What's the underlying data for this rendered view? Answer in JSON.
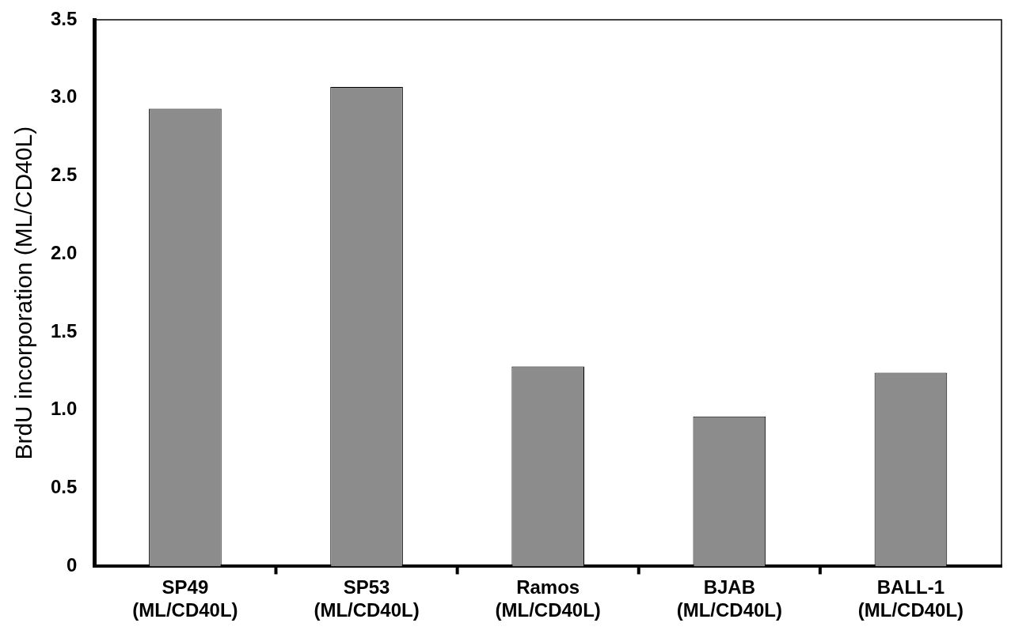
{
  "chart_data": {
    "type": "bar",
    "ylabel": "BrdU incorporation (ML/CD40L)",
    "categories": [
      "SP49\n(ML/CD40L)",
      "SP53\n(ML/CD40L)",
      "Ramos\n(ML/CD40L)",
      "BJAB\n(ML/CD40L)",
      "BALL-1\n(ML/CD40L)"
    ],
    "values": [
      2.93,
      3.07,
      1.28,
      0.96,
      1.24
    ],
    "color": "#8c8c8c",
    "ylim": [
      0,
      3.5
    ],
    "yticks": [
      0,
      0.5,
      {
        "value": 1,
        "label": "1.0"
      },
      1.5,
      {
        "value": 2,
        "label": "2.0"
      },
      2.5,
      {
        "value": 3,
        "label": "3.0"
      },
      3.5
    ],
    "grid": false,
    "legend": false
  }
}
